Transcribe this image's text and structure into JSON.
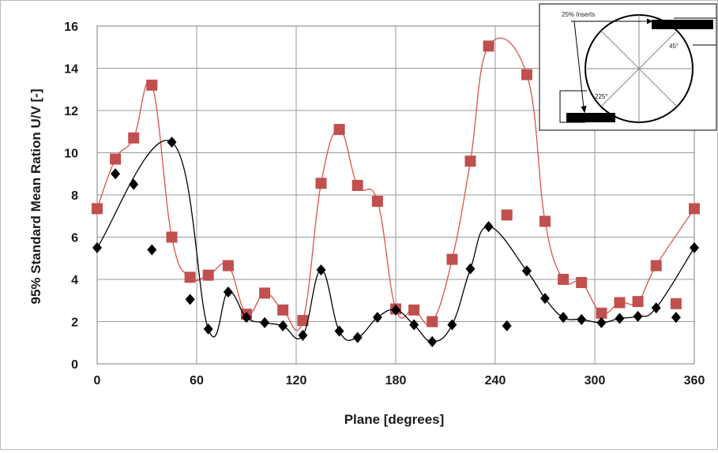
{
  "chart_data": {
    "type": "line",
    "xlabel": "Plane [degrees]",
    "ylabel": "95% Standard Mean Ration U/V [-]",
    "xlim": [
      0,
      360
    ],
    "ylim": [
      0,
      16
    ],
    "xticks": [
      0,
      60,
      120,
      180,
      240,
      300,
      360
    ],
    "yticks": [
      0,
      2,
      4,
      6,
      8,
      10,
      12,
      14,
      16
    ],
    "grid": true,
    "series": [
      {
        "marker": "square",
        "color": "#c0504d",
        "points": [
          [
            0,
            7.35
          ],
          [
            11,
            9.7
          ],
          [
            22,
            10.7
          ],
          [
            33,
            13.2
          ],
          [
            45,
            6.0
          ],
          [
            56,
            4.1
          ],
          [
            67,
            4.2
          ],
          [
            79,
            4.65
          ],
          [
            90,
            2.35
          ],
          [
            101,
            3.35
          ],
          [
            112,
            2.55
          ],
          [
            124,
            2.05
          ],
          [
            135,
            8.55
          ],
          [
            146,
            11.1
          ],
          [
            157,
            8.45
          ],
          [
            169,
            7.7
          ],
          [
            180,
            2.6
          ],
          [
            191,
            2.55
          ],
          [
            202,
            2.0
          ],
          [
            214,
            4.95
          ],
          [
            225,
            9.6
          ],
          [
            236,
            15.05
          ],
          [
            247,
            7.05
          ],
          [
            259,
            13.7
          ],
          [
            270,
            6.75
          ],
          [
            281,
            4.0
          ],
          [
            292,
            3.85
          ],
          [
            304,
            2.4
          ],
          [
            315,
            2.9
          ],
          [
            326,
            2.95
          ],
          [
            337,
            4.65
          ],
          [
            349,
            2.85
          ],
          [
            360,
            7.35
          ]
        ],
        "curve": [
          [
            0,
            7.35
          ],
          [
            11,
            9.7
          ],
          [
            22,
            10.7
          ],
          [
            33,
            13.2
          ],
          [
            45,
            6.0
          ],
          [
            56,
            4.1
          ],
          [
            67,
            4.2
          ],
          [
            79,
            4.65
          ],
          [
            90,
            2.35
          ],
          [
            101,
            3.35
          ],
          [
            112,
            2.55
          ],
          [
            124,
            2.05
          ],
          [
            135,
            8.55
          ],
          [
            146,
            11.1
          ],
          [
            157,
            8.45
          ],
          [
            169,
            7.7
          ],
          [
            180,
            2.6
          ],
          [
            191,
            2.55
          ],
          [
            202,
            2.0
          ],
          [
            214,
            4.95
          ],
          [
            225,
            9.6
          ],
          [
            236,
            15.05
          ],
          [
            259,
            13.7
          ],
          [
            270,
            6.75
          ],
          [
            281,
            4.0
          ],
          [
            292,
            3.85
          ],
          [
            304,
            2.4
          ],
          [
            315,
            2.9
          ],
          [
            326,
            2.95
          ],
          [
            337,
            4.65
          ],
          [
            360,
            7.35
          ]
        ]
      },
      {
        "marker": "diamond",
        "color": "#000000",
        "points": [
          [
            0,
            5.5
          ],
          [
            11,
            9.0
          ],
          [
            22,
            8.5
          ],
          [
            33,
            5.4
          ],
          [
            45,
            10.5
          ],
          [
            56,
            3.05
          ],
          [
            67,
            1.65
          ],
          [
            79,
            3.4
          ],
          [
            90,
            2.2
          ],
          [
            101,
            1.95
          ],
          [
            112,
            1.8
          ],
          [
            124,
            1.35
          ],
          [
            135,
            4.45
          ],
          [
            146,
            1.55
          ],
          [
            157,
            1.25
          ],
          [
            169,
            2.2
          ],
          [
            180,
            2.55
          ],
          [
            191,
            1.85
          ],
          [
            202,
            1.05
          ],
          [
            214,
            1.85
          ],
          [
            225,
            4.5
          ],
          [
            236,
            6.5
          ],
          [
            247,
            1.8
          ],
          [
            259,
            4.4
          ],
          [
            270,
            3.1
          ],
          [
            281,
            2.2
          ],
          [
            292,
            2.1
          ],
          [
            304,
            1.95
          ],
          [
            315,
            2.15
          ],
          [
            326,
            2.25
          ],
          [
            337,
            2.65
          ],
          [
            349,
            2.2
          ],
          [
            360,
            5.5
          ]
        ],
        "curve": [
          [
            0,
            5.5
          ],
          [
            45,
            10.5
          ],
          [
            67,
            1.65
          ],
          [
            79,
            3.4
          ],
          [
            90,
            2.2
          ],
          [
            101,
            1.95
          ],
          [
            112,
            1.8
          ],
          [
            124,
            1.35
          ],
          [
            135,
            4.45
          ],
          [
            146,
            1.55
          ],
          [
            157,
            1.25
          ],
          [
            169,
            2.2
          ],
          [
            180,
            2.55
          ],
          [
            191,
            1.85
          ],
          [
            202,
            1.05
          ],
          [
            214,
            1.85
          ],
          [
            225,
            4.5
          ],
          [
            236,
            6.5
          ],
          [
            259,
            4.4
          ],
          [
            270,
            3.1
          ],
          [
            281,
            2.2
          ],
          [
            292,
            2.1
          ],
          [
            304,
            1.95
          ],
          [
            315,
            2.15
          ],
          [
            326,
            2.25
          ],
          [
            337,
            2.65
          ],
          [
            360,
            5.5
          ]
        ]
      }
    ],
    "inset": {
      "label_inserts": "25% Inserts",
      "label_45": "45°",
      "label_225": "225°"
    }
  }
}
